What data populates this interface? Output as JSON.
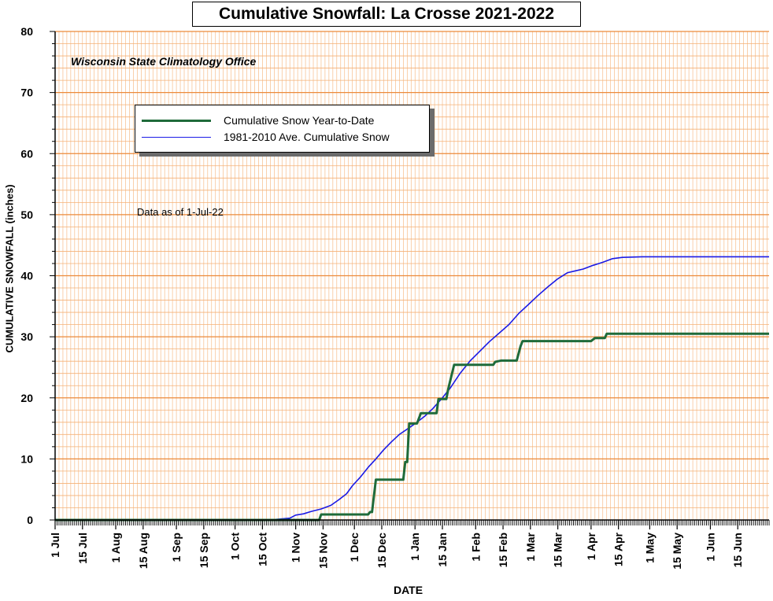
{
  "chart_data": {
    "type": "line",
    "title": "Cumulative Snowfall: La Crosse 2021-2022",
    "source_note": "Wisconsin State Climatology Office",
    "annotation": "Data as of 1-Jul-22",
    "xlabel": "DATE",
    "ylabel": "CUMULATIVE SNOWFALL (inches)",
    "ylim": [
      0,
      80
    ],
    "y_ticks": [
      "0",
      "10",
      "20",
      "30",
      "40",
      "50",
      "60",
      "70",
      "80"
    ],
    "x_domain_days": [
      0,
      365
    ],
    "x_ticks": [
      {
        "label": "1 Jul",
        "day": 0
      },
      {
        "label": "15 Jul",
        "day": 14
      },
      {
        "label": "1 Aug",
        "day": 31
      },
      {
        "label": "15 Aug",
        "day": 45
      },
      {
        "label": "1 Sep",
        "day": 62
      },
      {
        "label": "15 Sep",
        "day": 76
      },
      {
        "label": "1 Oct",
        "day": 92
      },
      {
        "label": "15 Oct",
        "day": 106
      },
      {
        "label": "1 Nov",
        "day": 123
      },
      {
        "label": "15 Nov",
        "day": 137
      },
      {
        "label": "1 Dec",
        "day": 153
      },
      {
        "label": "15 Dec",
        "day": 167
      },
      {
        "label": "1 Jan",
        "day": 184
      },
      {
        "label": "15 Jan",
        "day": 198
      },
      {
        "label": "1 Feb",
        "day": 215
      },
      {
        "label": "15 Feb",
        "day": 229
      },
      {
        "label": "1 Mar",
        "day": 243
      },
      {
        "label": "15 Mar",
        "day": 257
      },
      {
        "label": "1 Apr",
        "day": 274
      },
      {
        "label": "15 Apr",
        "day": 288
      },
      {
        "label": "1 May",
        "day": 304
      },
      {
        "label": "15 May",
        "day": 318
      },
      {
        "label": "1 Jun",
        "day": 335
      },
      {
        "label": "15 Jun",
        "day": 349
      }
    ],
    "grid": true,
    "legend_position": "top-left",
    "series": [
      {
        "name": "Cumulative Snow Year-to-Date",
        "color": "#1f6b3a",
        "points": [
          [
            0,
            0
          ],
          [
            135,
            0
          ],
          [
            136,
            0.9
          ],
          [
            160,
            0.9
          ],
          [
            161,
            1.3
          ],
          [
            162,
            1.3
          ],
          [
            164,
            6.6
          ],
          [
            178,
            6.6
          ],
          [
            179,
            9.5
          ],
          [
            180,
            9.5
          ],
          [
            181,
            15.8
          ],
          [
            185,
            15.8
          ],
          [
            187,
            17.5
          ],
          [
            195,
            17.5
          ],
          [
            196,
            19.8
          ],
          [
            200,
            19.8
          ],
          [
            201,
            21.5
          ],
          [
            204,
            25.4
          ],
          [
            224,
            25.4
          ],
          [
            225,
            25.9
          ],
          [
            228,
            26.1
          ],
          [
            236,
            26.1
          ],
          [
            238,
            28.5
          ],
          [
            239,
            29.3
          ],
          [
            274,
            29.3
          ],
          [
            276,
            29.8
          ],
          [
            281,
            29.8
          ],
          [
            282,
            30.5
          ],
          [
            365,
            30.5
          ]
        ]
      },
      {
        "name": "1981-2010 Ave. Cumulative Snow",
        "color": "#1a1ae6",
        "points": [
          [
            0,
            0
          ],
          [
            109,
            0
          ],
          [
            115,
            0.15
          ],
          [
            120,
            0.3
          ],
          [
            123,
            0.8
          ],
          [
            127,
            1.0
          ],
          [
            131,
            1.4
          ],
          [
            136,
            1.8
          ],
          [
            141,
            2.4
          ],
          [
            145,
            3.3
          ],
          [
            149,
            4.3
          ],
          [
            152,
            5.6
          ],
          [
            156,
            7.0
          ],
          [
            160,
            8.6
          ],
          [
            164,
            10.0
          ],
          [
            168,
            11.5
          ],
          [
            172,
            12.8
          ],
          [
            176,
            14.0
          ],
          [
            181,
            15.1
          ],
          [
            185,
            16.0
          ],
          [
            189,
            17.0
          ],
          [
            193,
            18.2
          ],
          [
            198,
            20.0
          ],
          [
            202,
            21.6
          ],
          [
            207,
            24.0
          ],
          [
            212,
            26.0
          ],
          [
            217,
            27.6
          ],
          [
            222,
            29.2
          ],
          [
            227,
            30.6
          ],
          [
            232,
            32.0
          ],
          [
            237,
            33.8
          ],
          [
            242,
            35.3
          ],
          [
            247,
            36.8
          ],
          [
            252,
            38.2
          ],
          [
            257,
            39.5
          ],
          [
            262,
            40.5
          ],
          [
            266,
            40.8
          ],
          [
            270,
            41.1
          ],
          [
            275,
            41.7
          ],
          [
            280,
            42.2
          ],
          [
            285,
            42.8
          ],
          [
            290,
            43.0
          ],
          [
            300,
            43.1
          ],
          [
            365,
            43.1
          ]
        ]
      }
    ]
  }
}
